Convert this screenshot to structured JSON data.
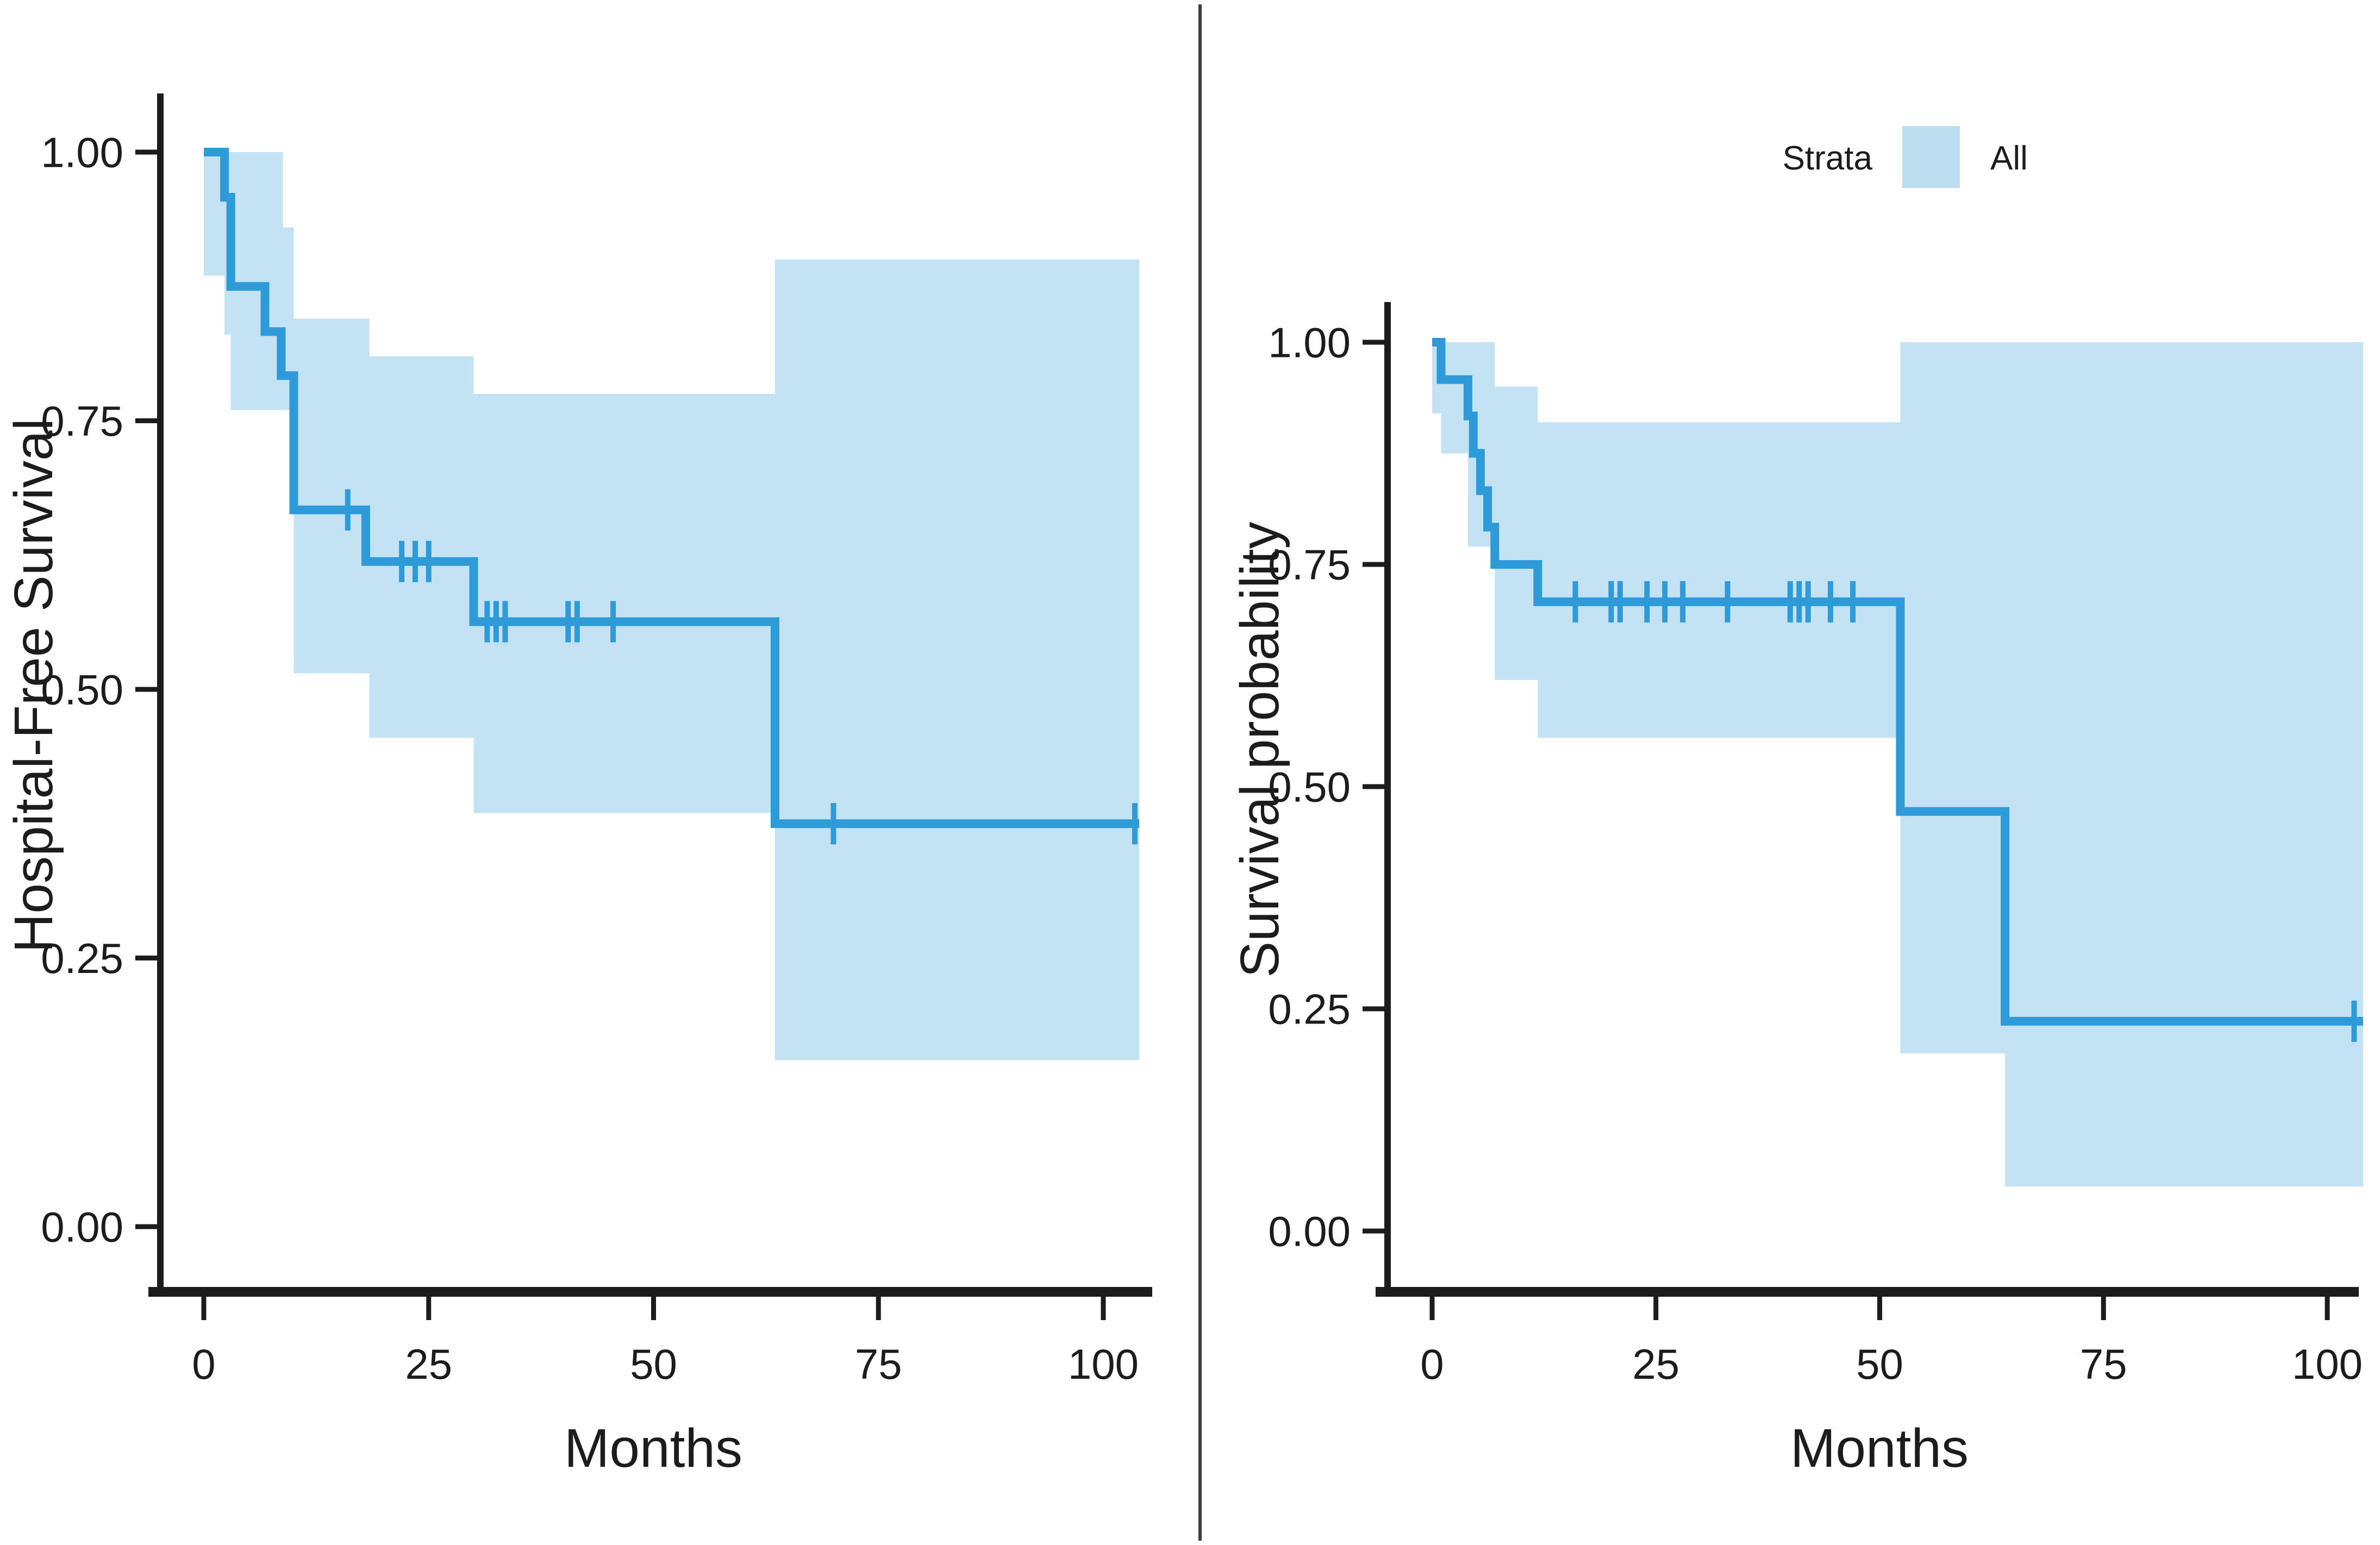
{
  "figure": {
    "background": "#ffffff",
    "divider_color": "#3c3c3c",
    "axis_color": "#1c1c1c",
    "text_color": "#1c1c1c",
    "legend": {
      "title": "Strata",
      "items": [
        {
          "label": "All",
          "swatch_color": "#BDDEF0"
        }
      ],
      "position": "top-right"
    }
  },
  "chart_data": [
    {
      "type": "line",
      "subtype": "kaplan-meier-step",
      "panel": "left",
      "title": "",
      "xlabel": "Months",
      "ylabel": "Hospital-Free Survival",
      "xlim": [
        0,
        105
      ],
      "ylim": [
        0,
        1
      ],
      "xticks": [
        0,
        25,
        50,
        75,
        100
      ],
      "yticks": [
        "0.00",
        "0.25",
        "0.50",
        "0.75",
        "1.00"
      ],
      "ytick_values": [
        0,
        0.25,
        0.5,
        0.75,
        1
      ],
      "grid": false,
      "line_color": "#2E9BD8",
      "ci_color": "#C3E2F4",
      "steps": [
        [
          0,
          2.3,
          1.0
        ],
        [
          2.3,
          3.0,
          0.958
        ],
        [
          3.0,
          6.8,
          0.875
        ],
        [
          6.8,
          8.6,
          0.833
        ],
        [
          8.6,
          10.0,
          0.792
        ],
        [
          10.0,
          18.0,
          0.667
        ],
        [
          18.0,
          30.0,
          0.619
        ],
        [
          30.0,
          63.5,
          0.563
        ],
        [
          63.5,
          104,
          0.375
        ]
      ],
      "censors": [
        [
          16,
          0.667
        ],
        [
          22,
          0.619
        ],
        [
          23.5,
          0.619
        ],
        [
          25,
          0.619
        ],
        [
          31.5,
          0.563
        ],
        [
          32.5,
          0.563
        ],
        [
          33.5,
          0.563
        ],
        [
          40.5,
          0.563
        ],
        [
          41.5,
          0.563
        ],
        [
          45.5,
          0.563
        ],
        [
          70,
          0.375
        ],
        [
          103.5,
          0.375
        ]
      ],
      "ci": [
        [
          0,
          2.3,
          1.0,
          0.885
        ],
        [
          2.3,
          3.0,
          1.0,
          0.83
        ],
        [
          3.0,
          8.8,
          1.0,
          0.76
        ],
        [
          8.8,
          10,
          0.93,
          0.76
        ],
        [
          10,
          18.4,
          0.845,
          0.515
        ],
        [
          18.4,
          30,
          0.81,
          0.455
        ],
        [
          30,
          63.5,
          0.775,
          0.385
        ],
        [
          63.5,
          104,
          0.9,
          0.155
        ]
      ]
    },
    {
      "type": "line",
      "subtype": "kaplan-meier-step",
      "panel": "right",
      "title": "",
      "xlabel": "Months",
      "ylabel": "Survival probability",
      "xlim": [
        0,
        105
      ],
      "ylim": [
        0,
        1
      ],
      "xticks": [
        0,
        25,
        50,
        75,
        100
      ],
      "yticks": [
        "0.00",
        "0.25",
        "0.50",
        "0.75",
        "1.00"
      ],
      "ytick_values": [
        0,
        0.25,
        0.5,
        0.75,
        1
      ],
      "grid": false,
      "line_color": "#2E9BD8",
      "ci_color": "#C3E2F4",
      "steps": [
        [
          0,
          1.0,
          1.0
        ],
        [
          1.0,
          4.0,
          0.958
        ],
        [
          4.0,
          4.6,
          0.917
        ],
        [
          4.6,
          5.4,
          0.875
        ],
        [
          5.4,
          6.2,
          0.833
        ],
        [
          6.2,
          7.0,
          0.792
        ],
        [
          7.0,
          11.8,
          0.75
        ],
        [
          11.8,
          52.3,
          0.708
        ],
        [
          52.3,
          64,
          0.472
        ],
        [
          64,
          104,
          0.236
        ]
      ],
      "censors": [
        [
          16,
          0.708
        ],
        [
          20,
          0.708
        ],
        [
          21,
          0.708
        ],
        [
          24,
          0.708
        ],
        [
          26,
          0.708
        ],
        [
          28,
          0.708
        ],
        [
          33,
          0.708
        ],
        [
          40,
          0.708
        ],
        [
          41,
          0.708
        ],
        [
          42,
          0.708
        ],
        [
          44.5,
          0.708
        ],
        [
          47,
          0.708
        ],
        [
          103,
          0.236
        ]
      ],
      "ci": [
        [
          0,
          1.0,
          1.0,
          0.92
        ],
        [
          1.0,
          4.0,
          1.0,
          0.875
        ],
        [
          4.0,
          7.0,
          1.0,
          0.77
        ],
        [
          7.0,
          11.8,
          0.95,
          0.62
        ],
        [
          11.8,
          52.3,
          0.91,
          0.555
        ],
        [
          52.3,
          64,
          1.0,
          0.2
        ],
        [
          64,
          104,
          1.0,
          0.05
        ]
      ]
    }
  ]
}
